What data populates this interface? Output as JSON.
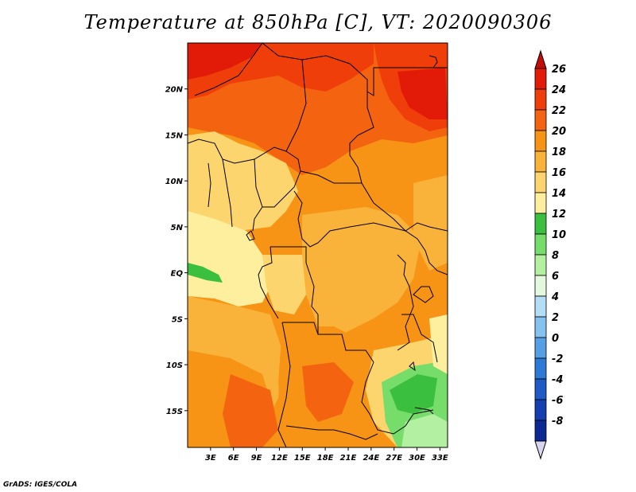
{
  "title": "Temperature at 850hPa [C], VT: 2020090306",
  "footer": "GrADS: IGES/COLA",
  "map": {
    "lon_range": [
      0,
      34
    ],
    "lat_range": [
      -19,
      25
    ],
    "lat_ticks": [
      {
        "value": 20,
        "label": "20N"
      },
      {
        "value": 15,
        "label": "15N"
      },
      {
        "value": 10,
        "label": "10N"
      },
      {
        "value": 5,
        "label": "5N"
      },
      {
        "value": 0,
        "label": "EQ"
      },
      {
        "value": -5,
        "label": "5S"
      },
      {
        "value": -10,
        "label": "10S"
      },
      {
        "value": -15,
        "label": "15S"
      }
    ],
    "lon_ticks": [
      {
        "value": 3,
        "label": "3E"
      },
      {
        "value": 6,
        "label": "6E"
      },
      {
        "value": 9,
        "label": "9E"
      },
      {
        "value": 12,
        "label": "12E"
      },
      {
        "value": 15,
        "label": "15E"
      },
      {
        "value": 18,
        "label": "18E"
      },
      {
        "value": 21,
        "label": "21E"
      },
      {
        "value": 24,
        "label": "24E"
      },
      {
        "value": 27,
        "label": "27E"
      },
      {
        "value": 30,
        "label": "30E"
      },
      {
        "value": 33,
        "label": "33E"
      }
    ]
  },
  "colorbar": {
    "levels": [
      {
        "label": "26",
        "color": "#e11b08"
      },
      {
        "label": "24",
        "color": "#f03e0a"
      },
      {
        "label": "22",
        "color": "#f46410"
      },
      {
        "label": "20",
        "color": "#f79416"
      },
      {
        "label": "18",
        "color": "#fab33a"
      },
      {
        "label": "16",
        "color": "#fcd56e"
      },
      {
        "label": "14",
        "color": "#fdef9e"
      },
      {
        "label": "12",
        "color": "#3bbf3e"
      },
      {
        "label": "10",
        "color": "#76dc6a"
      },
      {
        "label": "8",
        "color": "#b4f0a2"
      },
      {
        "label": "6",
        "color": "#e3f8dc"
      },
      {
        "label": "4",
        "color": "#b4ddf6"
      },
      {
        "label": "2",
        "color": "#86c2f0"
      },
      {
        "label": "0",
        "color": "#569fe4"
      },
      {
        "label": "-2",
        "color": "#2d7ad6"
      },
      {
        "label": "-4",
        "color": "#1d5ac6"
      },
      {
        "label": "-6",
        "color": "#153fb0"
      },
      {
        "label": "-8",
        "color": "#0c2893"
      }
    ],
    "top_color": "#c30d0a",
    "bottom_color": "#d9d4ef"
  }
}
